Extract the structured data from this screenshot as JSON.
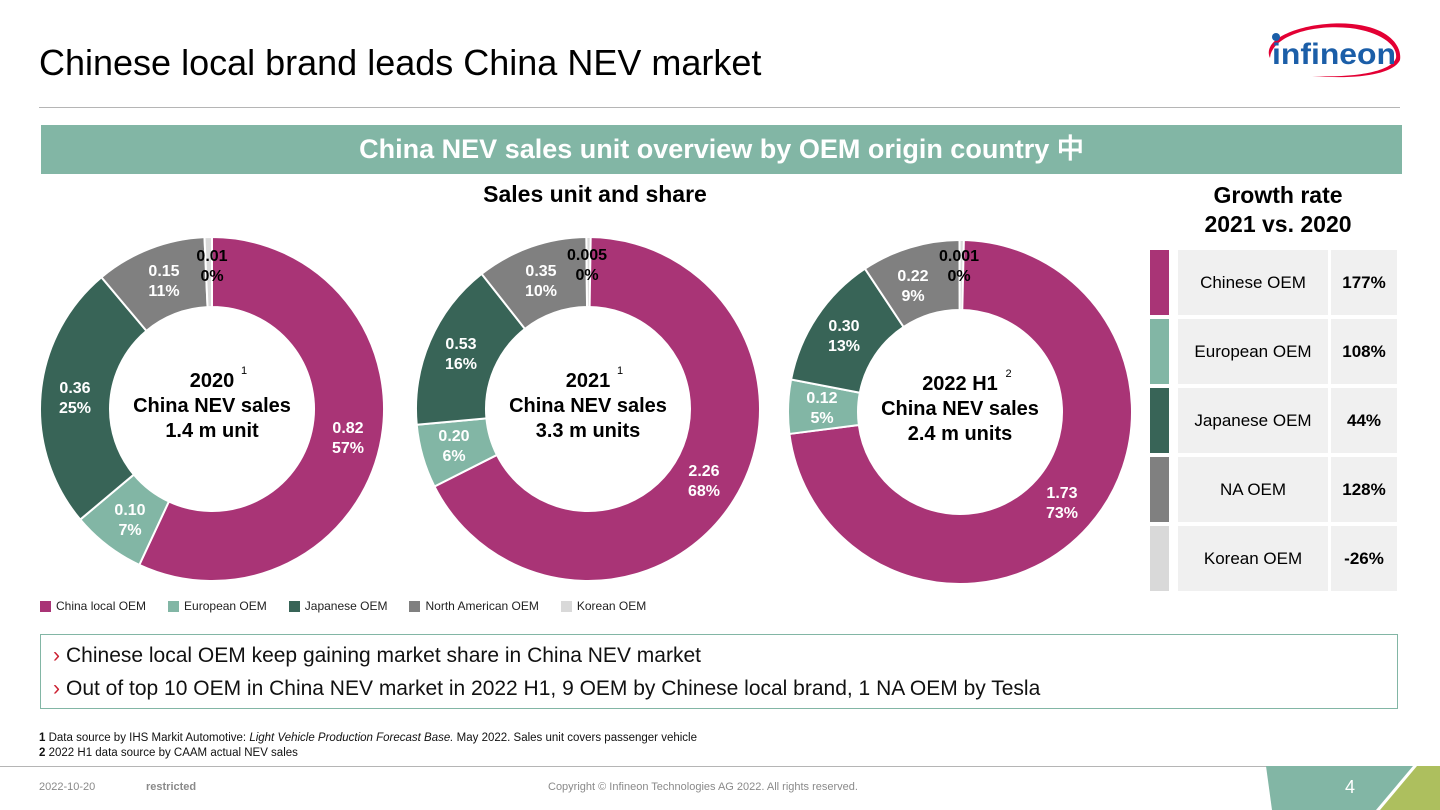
{
  "page": {
    "title": "Chinese local brand leads China NEV market",
    "logo_text": "infineon",
    "banner": "China NEV sales unit overview by OEM origin country 中",
    "subhead": "Sales unit and share",
    "growth_head_line1": "Growth rate",
    "growth_head_line2": "2021 vs. 2020"
  },
  "colors": {
    "china_local": "#a93476",
    "european": "#82b6a5",
    "japanese": "#386457",
    "north_american": "#808080",
    "korean": "#d9d9d9",
    "banner": "#82b6a5",
    "logo_blue": "#1b5ea8",
    "logo_red": "#e30034",
    "accent_red": "#cc2233",
    "footer_teal": "#82b6a5",
    "footer_green": "#adbf5e"
  },
  "chart_data": [
    {
      "type": "pie",
      "variant": "donut",
      "title": "2020",
      "footnote_ref": "1",
      "center_lines": [
        "2020",
        "China NEV sales",
        "1.4 m unit"
      ],
      "categories": [
        "China local OEM",
        "European OEM",
        "Japanese OEM",
        "North American OEM",
        "Korean OEM"
      ],
      "values": [
        0.82,
        0.1,
        0.36,
        0.15,
        0.01
      ],
      "value_labels": [
        "0.82",
        "0.10",
        "0.36",
        "0.15",
        "0.01"
      ],
      "share_labels": [
        "57%",
        "7%",
        "25%",
        "11%",
        "0%"
      ],
      "unit": "m units"
    },
    {
      "type": "pie",
      "variant": "donut",
      "title": "2021",
      "footnote_ref": "1",
      "center_lines": [
        "2021",
        "China NEV sales",
        "3.3 m units"
      ],
      "categories": [
        "China local OEM",
        "European OEM",
        "Japanese OEM",
        "North American OEM",
        "Korean OEM"
      ],
      "values": [
        2.26,
        0.2,
        0.53,
        0.35,
        0.005
      ],
      "value_labels": [
        "2.26",
        "0.20",
        "0.53",
        "0.35",
        "0.005"
      ],
      "share_labels": [
        "68%",
        "6%",
        "16%",
        "10%",
        "0%"
      ],
      "unit": "m units"
    },
    {
      "type": "pie",
      "variant": "donut",
      "title": "2022 H1",
      "footnote_ref": "2",
      "center_lines": [
        "2022 H1",
        "China NEV sales",
        "2.4 m units"
      ],
      "categories": [
        "China local OEM",
        "European OEM",
        "Japanese OEM",
        "North American OEM",
        "Korean OEM"
      ],
      "values": [
        1.73,
        0.12,
        0.3,
        0.22,
        0.001
      ],
      "value_labels": [
        "1.73",
        "0.12",
        "0.30",
        "0.22",
        "0.001"
      ],
      "share_labels": [
        "73%",
        "5%",
        "13%",
        "9%",
        "0%"
      ],
      "unit": "m units"
    }
  ],
  "legend": [
    {
      "label": "China local OEM",
      "color": "#a93476"
    },
    {
      "label": "European OEM",
      "color": "#82b6a5"
    },
    {
      "label": "Japanese OEM",
      "color": "#386457"
    },
    {
      "label": "North American OEM",
      "color": "#808080"
    },
    {
      "label": "Korean OEM",
      "color": "#d9d9d9"
    }
  ],
  "growth": [
    {
      "name": "Chinese OEM",
      "value": "177%",
      "color": "#a93476"
    },
    {
      "name": "European OEM",
      "value": "108%",
      "color": "#82b6a5"
    },
    {
      "name": "Japanese OEM",
      "value": "44%",
      "color": "#386457"
    },
    {
      "name": "NA OEM",
      "value": "128%",
      "color": "#808080"
    },
    {
      "name": "Korean OEM",
      "value": "-26%",
      "color": "#d9d9d9"
    }
  ],
  "takeaways": [
    "Chinese local OEM keep gaining market share in China NEV market",
    "Out of top 10 OEM in China NEV market in 2022 H1, 9 OEM by Chinese local brand, 1 NA OEM by Tesla"
  ],
  "bullet_glyph": "›",
  "footnotes": [
    {
      "num": "1",
      "pre": "Data source by IHS Markit Automotive: ",
      "italic": "Light Vehicle Production Forecast Base.",
      "post": " May 2022. Sales unit covers passenger vehicle"
    },
    {
      "num": "2",
      "pre": "2022 H1 data source by CAAM actual NEV sales",
      "italic": "",
      "post": ""
    }
  ],
  "footer": {
    "date": "2022-10-20",
    "classification": "restricted",
    "copyright": "Copyright © Infineon Technologies AG 2022. All rights reserved.",
    "page_number": "4"
  }
}
